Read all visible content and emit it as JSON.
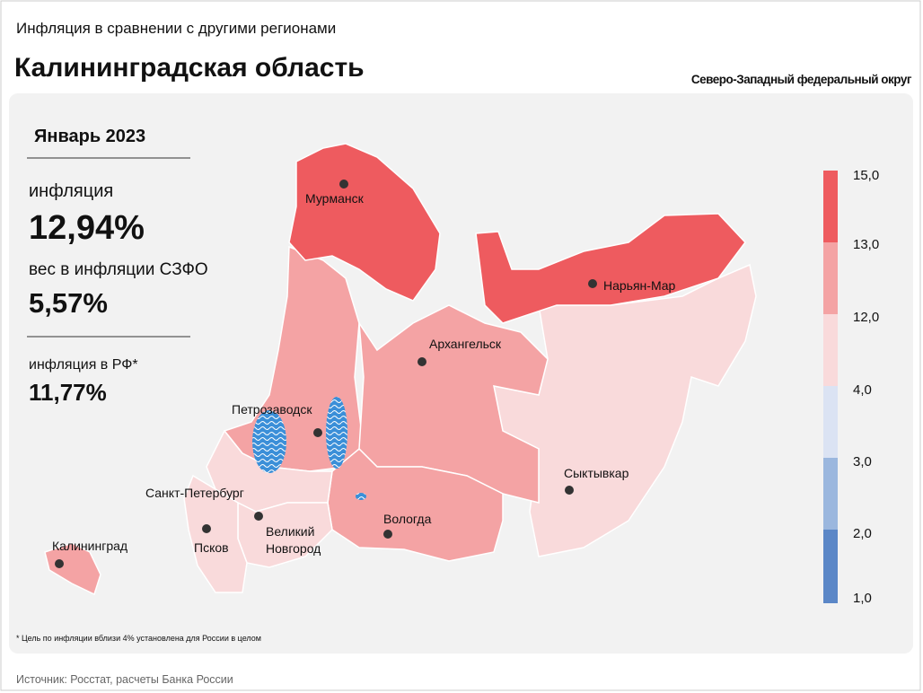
{
  "header": {
    "subtitle": "Инфляция в сравнении с другими регионами",
    "title": "Калининградская область",
    "district": "Северо-Западный федеральный округ"
  },
  "panel": {
    "period": "Январь 2023",
    "stats": [
      {
        "label": "инфляция",
        "value": "12,94%"
      },
      {
        "label": "вес в инфляции СЗФО",
        "value": "5,57%"
      },
      {
        "label": "инфляция в РФ*",
        "value": "11,77%"
      }
    ]
  },
  "legend": {
    "labels": [
      "15,0",
      "13,0",
      "12,0",
      "4,0",
      "3,0",
      "2,0",
      "1,0"
    ]
  },
  "cities": [
    {
      "name": "Мурманск"
    },
    {
      "name": "Нарьян-Мар"
    },
    {
      "name": "Архангельск"
    },
    {
      "name": "Петрозаводск"
    },
    {
      "name": "Сыктывкар"
    },
    {
      "name": "Санкт-Петербург"
    },
    {
      "name": "Псков"
    },
    {
      "name": [
        "Великий",
        "Новгород"
      ]
    },
    {
      "name": "Вологда"
    },
    {
      "name": "Калининград"
    }
  ],
  "footnote": "* Цель по инфляции вблизи 4% установлена для России в целом",
  "source": "Источник: Росстат, расчеты Банка России"
}
